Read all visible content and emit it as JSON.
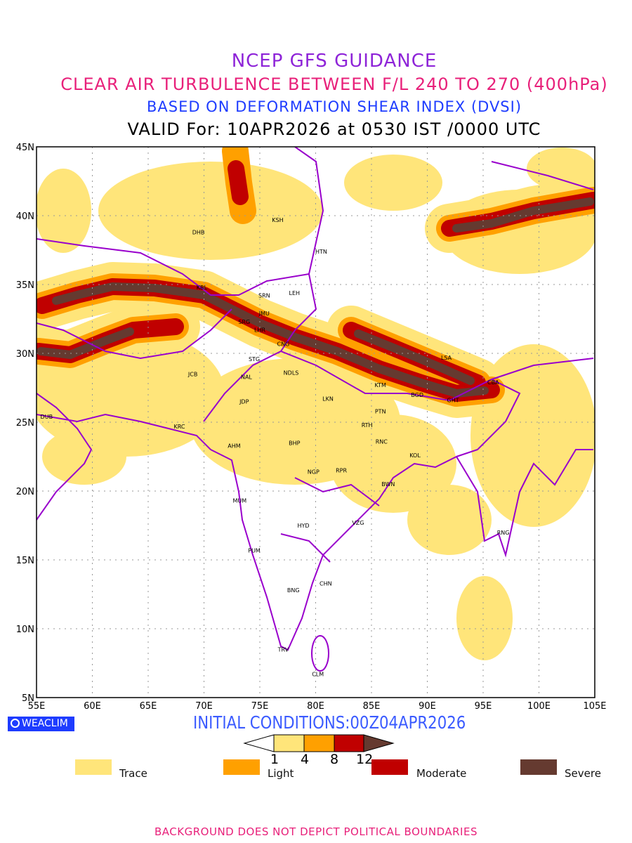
{
  "title": {
    "line1": "NCEP GFS GUIDANCE",
    "line2": "CLEAR AIR TURBULENCE BETWEEN F/L 240 TO 270 (400hPa)",
    "line3": "BASED ON DEFORMATION SHEAR INDEX (DVSI)",
    "line4": "VALID For: 10APR2026 at 0530 IST /0000 UTC"
  },
  "map": {
    "lon_range": [
      55,
      105
    ],
    "lat_range": [
      5,
      45
    ],
    "lon_ticks": [
      "55E",
      "60E",
      "65E",
      "70E",
      "75E",
      "80E",
      "85E",
      "90E",
      "95E",
      "100E",
      "105E"
    ],
    "lat_ticks": [
      "45N",
      "40N",
      "35N",
      "30N",
      "25N",
      "20N",
      "15N",
      "10N",
      "5N"
    ],
    "boundary_color": "#9900CC",
    "cities": [
      {
        "code": "KSH",
        "lon": 76.6,
        "lat": 39.7
      },
      {
        "code": "DHB",
        "lon": 69.5,
        "lat": 38.8
      },
      {
        "code": "HTN",
        "lon": 80.5,
        "lat": 37.4
      },
      {
        "code": "KBL",
        "lon": 69.8,
        "lat": 34.8
      },
      {
        "code": "SRN",
        "lon": 75.4,
        "lat": 34.2
      },
      {
        "code": "LEH",
        "lon": 78.1,
        "lat": 34.4
      },
      {
        "code": "JMU",
        "lon": 75.4,
        "lat": 32.9
      },
      {
        "code": "SRG",
        "lon": 73.6,
        "lat": 32.3
      },
      {
        "code": "LHR",
        "lon": 75.0,
        "lat": 31.7
      },
      {
        "code": "CNG",
        "lon": 77.1,
        "lat": 30.7
      },
      {
        "code": "STG",
        "lon": 74.5,
        "lat": 29.6
      },
      {
        "code": "LSA",
        "lon": 91.7,
        "lat": 29.7
      },
      {
        "code": "JCB",
        "lon": 69.0,
        "lat": 28.5
      },
      {
        "code": "NAL",
        "lon": 73.8,
        "lat": 28.3
      },
      {
        "code": "NDLS",
        "lon": 77.8,
        "lat": 28.6
      },
      {
        "code": "KTM",
        "lon": 85.8,
        "lat": 27.7
      },
      {
        "code": "CBA",
        "lon": 95.9,
        "lat": 27.9
      },
      {
        "code": "BGD",
        "lon": 89.1,
        "lat": 27.0
      },
      {
        "code": "GHT",
        "lon": 92.3,
        "lat": 26.6
      },
      {
        "code": "LKN",
        "lon": 81.1,
        "lat": 26.7
      },
      {
        "code": "JDP",
        "lon": 73.6,
        "lat": 26.5
      },
      {
        "code": "PTN",
        "lon": 85.8,
        "lat": 25.8
      },
      {
        "code": "DUB",
        "lon": 55.9,
        "lat": 25.4
      },
      {
        "code": "RTH",
        "lon": 84.6,
        "lat": 24.8
      },
      {
        "code": "KRC",
        "lon": 67.8,
        "lat": 24.7
      },
      {
        "code": "RNC",
        "lon": 85.9,
        "lat": 23.6
      },
      {
        "code": "BHP",
        "lon": 78.1,
        "lat": 23.5
      },
      {
        "code": "AHM",
        "lon": 72.7,
        "lat": 23.3
      },
      {
        "code": "KOL",
        "lon": 88.9,
        "lat": 22.6
      },
      {
        "code": "NGP",
        "lon": 79.8,
        "lat": 21.4
      },
      {
        "code": "RPR",
        "lon": 82.3,
        "lat": 21.5
      },
      {
        "code": "BWN",
        "lon": 86.5,
        "lat": 20.5
      },
      {
        "code": "MUM",
        "lon": 73.2,
        "lat": 19.3
      },
      {
        "code": "VZG",
        "lon": 83.8,
        "lat": 17.7
      },
      {
        "code": "HYD",
        "lon": 78.9,
        "lat": 17.5
      },
      {
        "code": "RNG",
        "lon": 96.8,
        "lat": 17.0
      },
      {
        "code": "PUM",
        "lon": 74.5,
        "lat": 15.7
      },
      {
        "code": "CHN",
        "lon": 80.9,
        "lat": 13.3
      },
      {
        "code": "BNG",
        "lon": 78.0,
        "lat": 12.8
      },
      {
        "code": "TRV",
        "lon": 77.1,
        "lat": 8.5
      },
      {
        "code": "CLM",
        "lon": 80.2,
        "lat": 6.7
      }
    ]
  },
  "footer": {
    "logo": "WEACLIM",
    "initial_conditions": "INITIAL CONDITIONS:00Z04APR2026",
    "colorbar_values": [
      "1",
      "4",
      "8",
      "12"
    ],
    "legend": [
      {
        "label": "Trace",
        "color": "#FFE57A"
      },
      {
        "label": "Light",
        "color": "#FFA000"
      },
      {
        "label": "Moderate",
        "color": "#C00000"
      },
      {
        "label": "Severe",
        "color": "#653A30"
      }
    ],
    "disclaimer": "BACKGROUND DOES NOT DEPICT POLITICAL BOUNDARIES"
  }
}
